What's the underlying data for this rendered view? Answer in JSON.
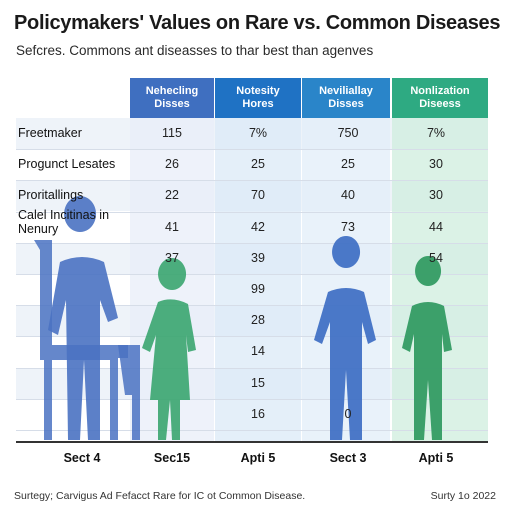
{
  "title": "Policymakers' Values on Rare vs. Common Diseases",
  "subtitle": "Sefcres. Commons ant diseasses to thar best than agenves",
  "colors": {
    "col1_header": "#3f6fc0",
    "col2_header": "#1f72c4",
    "col3_header": "#2a85c9",
    "col4_header": "#2eaa82",
    "col1_bg": "#e8eef8",
    "col2_bg": "#dbeaf7",
    "col3_bg": "#e1eef8",
    "col4_bg": "#cfeedd",
    "row_band": "#eef3f9",
    "figure_blue": "#4a72c2",
    "figure_blue2": "#3d6ec3",
    "figure_green": "#3aa56f",
    "figure_green2": "#2f9960"
  },
  "chart_data": {
    "type": "table",
    "columns": [
      "Nehecling Disses",
      "Notesity Hores",
      "Neviliallay Disses",
      "Nonlization Diseess"
    ],
    "rows": [
      {
        "label": "Freetmaker",
        "values": [
          "115",
          "7%",
          "750",
          "7%"
        ]
      },
      {
        "label": "Progunct Lesates",
        "values": [
          "26",
          "25",
          "25",
          "30"
        ]
      },
      {
        "label": "Proritallings",
        "values": [
          "22",
          "70",
          "40",
          "30"
        ]
      },
      {
        "label": "Calel Incitinas in Nenury",
        "values": [
          "41",
          "42",
          "73",
          "44"
        ]
      },
      {
        "label": "",
        "values": [
          "37",
          "39",
          "",
          "54"
        ]
      },
      {
        "label": "",
        "values": [
          "",
          "99",
          "",
          ""
        ]
      },
      {
        "label": "",
        "values": [
          "",
          "28",
          "",
          ""
        ]
      },
      {
        "label": "",
        "values": [
          "",
          "14",
          "",
          ""
        ]
      },
      {
        "label": "",
        "values": [
          "",
          "15",
          "",
          ""
        ]
      },
      {
        "label": "",
        "values": [
          "",
          "16",
          "0",
          ""
        ]
      }
    ],
    "footer": [
      "Sect 4",
      "Sec15",
      "Apti 5",
      "Sect 3",
      "Apti 5"
    ]
  },
  "source_note": "Surtegy; Carvigus Ad Fefacct Rare for IC ot Common Disease.",
  "survey_date": "Surty 1o 2022"
}
